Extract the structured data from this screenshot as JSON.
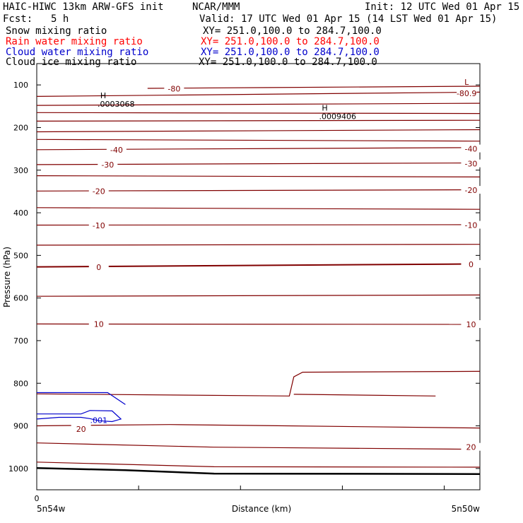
{
  "header": {
    "title_left": "HAIC-HIWC 13km ARW-GFS init",
    "title_org": "NCAR/MMM",
    "init": "Init: 12 UTC Wed 01 Apr 15",
    "fcst_label": "Fcst:",
    "fcst_value": "5 h",
    "valid": "Valid: 17 UTC Wed 01 Apr 15 (14 LST Wed 01 Apr 15)"
  },
  "fields": [
    {
      "name": "Snow mixing ratio",
      "xy": "XY= 251.0,100.0 to 284.7,100.0",
      "color": "#000000"
    },
    {
      "name": "Rain water mixing ratio",
      "xy": "XY= 251.0,100.0 to 284.7,100.0",
      "color": "#ff0000"
    },
    {
      "name": "Cloud water mixing ratio",
      "xy": "XY= 251.0,100.0 to 284.7,100.0",
      "color": "#0000cc"
    },
    {
      "name": "Cloud ice mixing ratio",
      "xy": "XY= 251.0,100.0 to 284.7,100.0",
      "color": "#000000"
    }
  ],
  "chart_data": {
    "type": "line",
    "xlabel": "Distance (km)",
    "ylabel": "Pressure (hPa)",
    "x_left_label": "5n54w",
    "x_right_label": "5n50w",
    "x_origin_label": "0",
    "yticks": [
      100,
      200,
      300,
      400,
      500,
      600,
      700,
      800,
      900,
      1000
    ],
    "ylim": [
      50,
      1050
    ],
    "xlim": [
      0,
      100
    ],
    "temperature_contour_color": "#800000",
    "temperature_contours": [
      {
        "level": -80,
        "label": "-80",
        "p": [
          [
            25,
            108
          ],
          [
            100,
            103
          ]
        ]
      },
      {
        "level": -80.9,
        "label": "-80.9",
        "p": [
          [
            0,
            127
          ],
          [
            100,
            117
          ]
        ]
      },
      {
        "level": -70,
        "label": "",
        "p": [
          [
            0,
            148
          ],
          [
            100,
            143
          ]
        ]
      },
      {
        "level": -70,
        "label": "",
        "p": [
          [
            0,
            165
          ],
          [
            100,
            167
          ]
        ]
      },
      {
        "level": -60,
        "label": "",
        "p": [
          [
            0,
            185
          ],
          [
            100,
            183
          ]
        ]
      },
      {
        "level": -50,
        "label": "",
        "p": [
          [
            0,
            210
          ],
          [
            100,
            205
          ]
        ]
      },
      {
        "level": -50,
        "label": "",
        "p": [
          [
            0,
            228
          ],
          [
            100,
            232
          ]
        ]
      },
      {
        "level": -40,
        "label": "-40",
        "p": [
          [
            0,
            252
          ],
          [
            100,
            247
          ]
        ]
      },
      {
        "level": -30,
        "label": "-30",
        "p": [
          [
            0,
            287
          ],
          [
            100,
            283
          ]
        ]
      },
      {
        "level": -25,
        "label": "",
        "p": [
          [
            0,
            313
          ],
          [
            100,
            316
          ]
        ]
      },
      {
        "level": -20,
        "label": "-20",
        "p": [
          [
            0,
            349
          ],
          [
            100,
            346
          ]
        ]
      },
      {
        "level": -15,
        "label": "",
        "p": [
          [
            0,
            388
          ],
          [
            100,
            392
          ]
        ]
      },
      {
        "level": -10,
        "label": "-10",
        "p": [
          [
            0,
            429
          ],
          [
            100,
            428
          ]
        ]
      },
      {
        "level": -5,
        "label": "",
        "p": [
          [
            0,
            476
          ],
          [
            100,
            474
          ]
        ]
      },
      {
        "level": 0,
        "label": "0",
        "p": [
          [
            0,
            527
          ],
          [
            100,
            520
          ]
        ]
      },
      {
        "level": 5,
        "label": "",
        "p": [
          [
            0,
            596
          ],
          [
            100,
            593
          ]
        ]
      },
      {
        "level": 10,
        "label": "10",
        "p": [
          [
            0,
            661
          ],
          [
            100,
            662
          ]
        ]
      },
      {
        "level": 15,
        "label": "",
        "p": [
          [
            0,
            825
          ],
          [
            57,
            830
          ],
          [
            58,
            785
          ],
          [
            60,
            774
          ],
          [
            100,
            772
          ]
        ]
      },
      {
        "level": 15,
        "label": "",
        "p": [
          [
            58,
            826
          ],
          [
            90,
            830
          ]
        ]
      },
      {
        "level": 20,
        "label": "20",
        "p": [
          [
            0,
            900
          ],
          [
            30,
            897
          ],
          [
            100,
            905
          ]
        ]
      },
      {
        "level": 20,
        "label": "20",
        "p": [
          [
            0,
            940
          ],
          [
            40,
            950
          ],
          [
            100,
            955
          ]
        ]
      },
      {
        "level": 25,
        "label": "",
        "p": [
          [
            0,
            985
          ],
          [
            40,
            996
          ],
          [
            100,
            997
          ]
        ]
      }
    ],
    "temperature_labels": [
      {
        "text": "-80",
        "x": 31,
        "p": 109
      },
      {
        "text": "-80.9",
        "x": 97,
        "p": 120
      },
      {
        "text": "-40",
        "x": 18,
        "p": 252
      },
      {
        "text": "-40",
        "x": 98,
        "p": 250
      },
      {
        "text": "-30",
        "x": 16,
        "p": 287
      },
      {
        "text": "-30",
        "x": 98,
        "p": 285
      },
      {
        "text": "-20",
        "x": 14,
        "p": 349
      },
      {
        "text": "-20",
        "x": 98,
        "p": 347
      },
      {
        "text": "-10",
        "x": 14,
        "p": 430
      },
      {
        "text": "-10",
        "x": 98,
        "p": 429
      },
      {
        "text": "0",
        "x": 14,
        "p": 528
      },
      {
        "text": "0",
        "x": 98,
        "p": 521
      },
      {
        "text": "10",
        "x": 14,
        "p": 661
      },
      {
        "text": "10",
        "x": 98,
        "p": 662
      },
      {
        "text": "20",
        "x": 10,
        "p": 907
      },
      {
        "text": "20",
        "x": 98,
        "p": 950
      }
    ],
    "surface_pressure": [
      [
        0,
        999
      ],
      [
        20,
        1004
      ],
      [
        40,
        1012
      ],
      [
        100,
        1013
      ]
    ],
    "cloud_water_color": "#0000cc",
    "cloud_water_contour": {
      "label": ".001",
      "p": [
        [
          0,
          872
        ],
        [
          10,
          872
        ],
        [
          12,
          864
        ],
        [
          17,
          865
        ],
        [
          19,
          884
        ],
        [
          17,
          890
        ],
        [
          14,
          888
        ],
        [
          12,
          883
        ],
        [
          10,
          880
        ],
        [
          5,
          880
        ],
        [
          0,
          884
        ]
      ]
    },
    "extrema": [
      {
        "symbol": "H",
        "value": ".0003068",
        "x": 15,
        "p": 131
      },
      {
        "symbol": "H",
        "value": ".0009406",
        "x": 65,
        "p": 160
      },
      {
        "symbol": "L",
        "value": "",
        "x": 97,
        "p": 100
      }
    ]
  }
}
